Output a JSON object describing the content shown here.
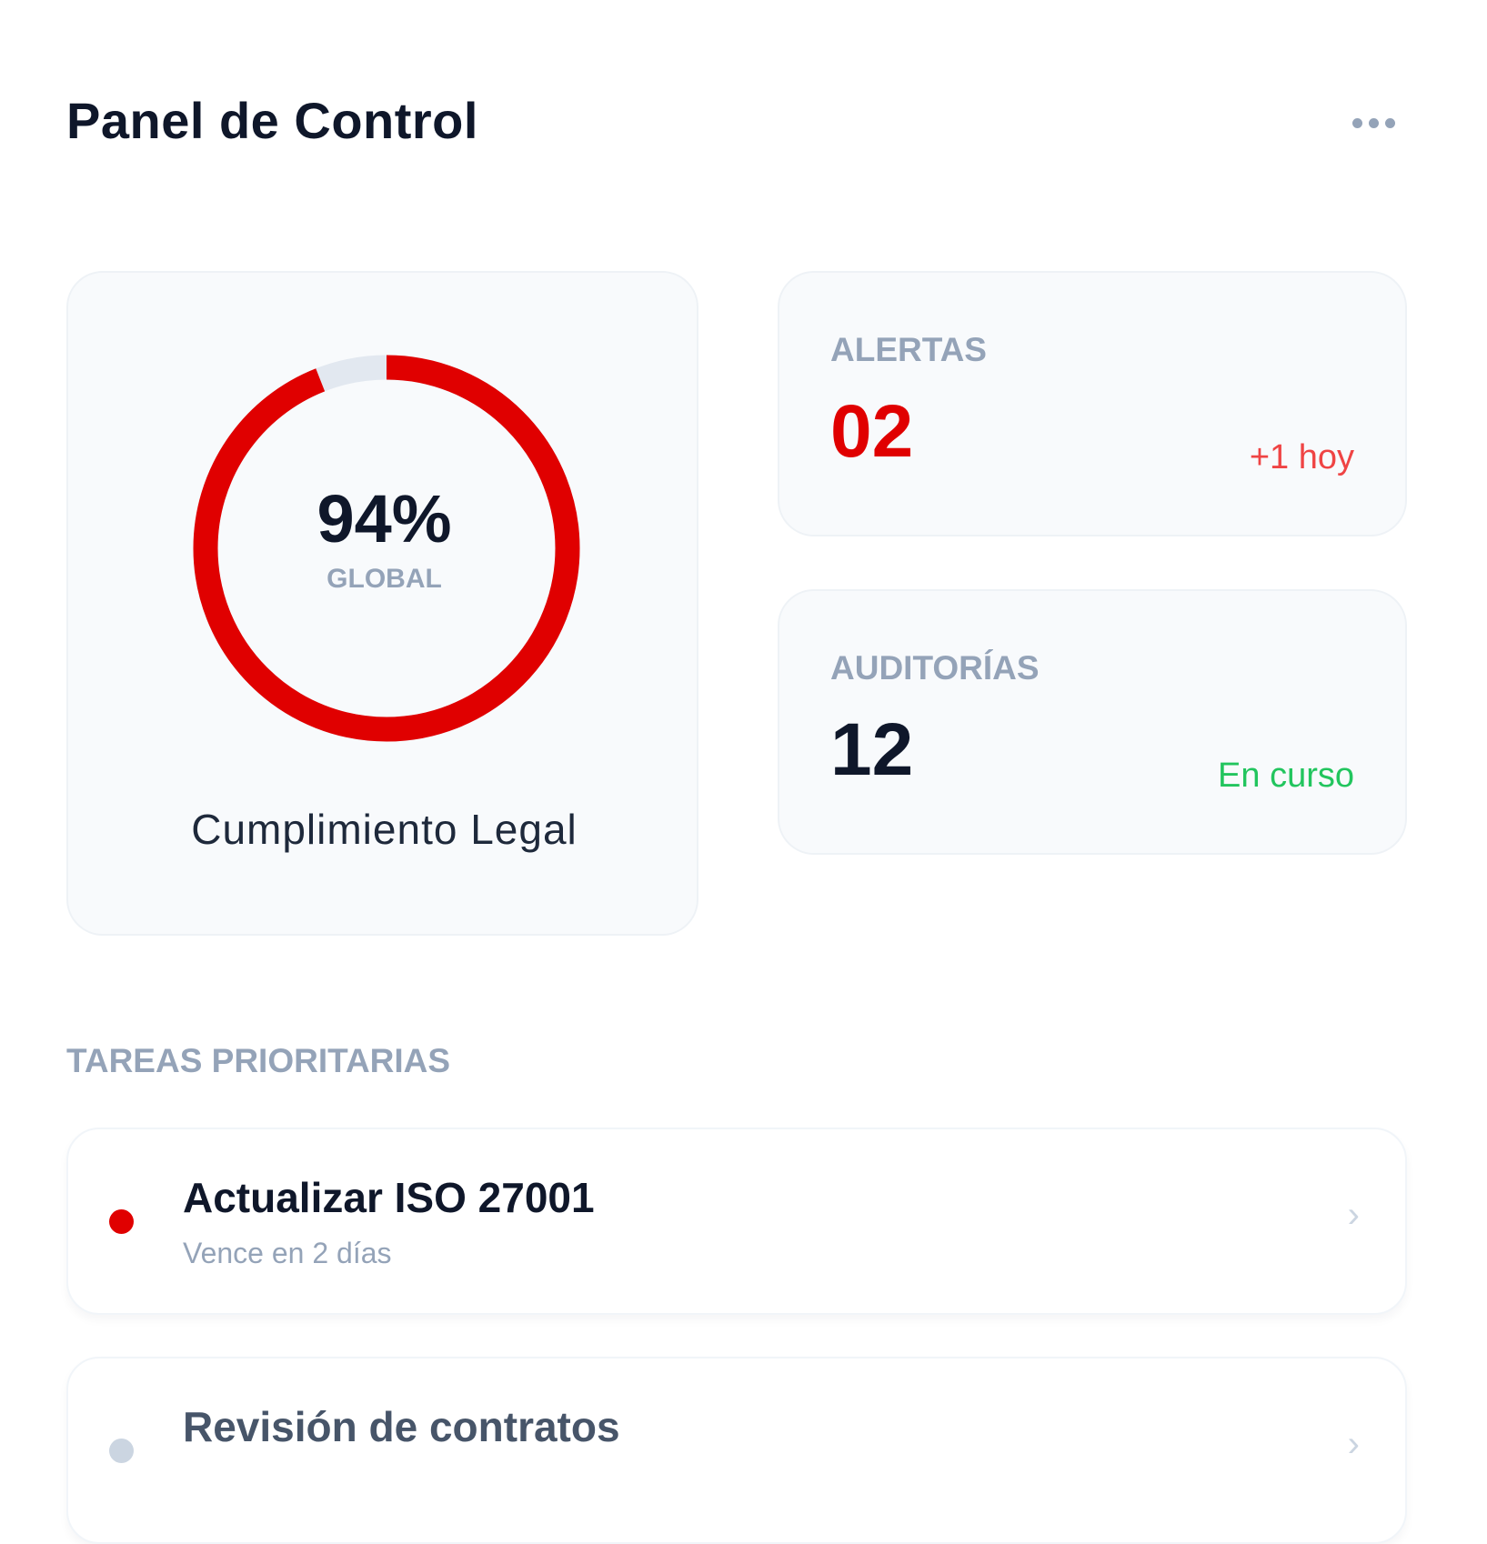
{
  "header": {
    "title": "Panel de Control",
    "more_icon": "more-horizontal-icon"
  },
  "compliance": {
    "value_percent": 94,
    "value_label": "94%",
    "sublabel": "GLOBAL",
    "title": "Cumplimiento Legal",
    "colors": {
      "fill": "#e00000",
      "track": "#e2e8f0"
    }
  },
  "stats": [
    {
      "label": "ALERTAS",
      "value": "02",
      "note": "+1 hoy",
      "value_color": "#e00000",
      "note_color": "#ef4444"
    },
    {
      "label": "AUDITORÍAS",
      "value": "12",
      "note": "En curso",
      "value_color": "#0f172a",
      "note_color": "#22c55e"
    }
  ],
  "tasks": {
    "section_title": "TAREAS PRIORITARIAS",
    "items": [
      {
        "title": "Actualizar ISO 27001",
        "subtitle": "Vence en 2 días",
        "dot_color": "#e00000"
      },
      {
        "title": "Revisión de contratos",
        "subtitle": "",
        "dot_color": "#cbd5e1"
      }
    ]
  }
}
